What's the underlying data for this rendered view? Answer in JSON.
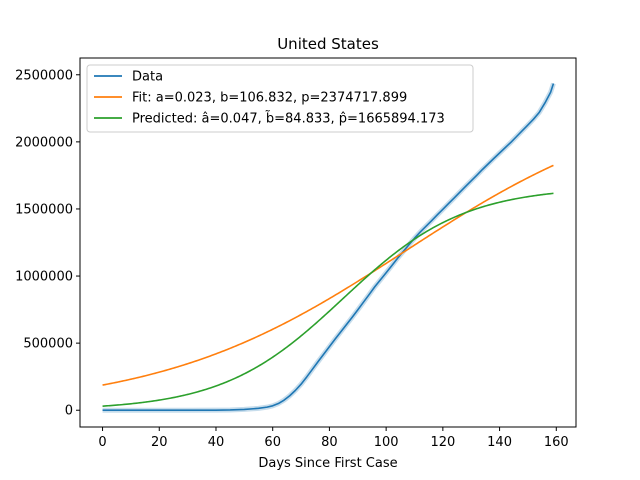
{
  "chart_data": {
    "type": "line",
    "title": "United States",
    "xlabel": "Days Since First Case",
    "ylabel": "",
    "xlim": [
      -7.95,
      166.95
    ],
    "ylim": [
      -125000,
      2625000
    ],
    "xticks": [
      0,
      20,
      40,
      60,
      80,
      100,
      120,
      140,
      160
    ],
    "yticks": [
      0,
      500000,
      1000000,
      1500000,
      2000000,
      2500000
    ],
    "grid": false,
    "legend_position": "top-left",
    "series": [
      {
        "name": "Data",
        "color": "#1f77b4",
        "kind": "observed",
        "x": [
          0,
          10,
          20,
          30,
          40,
          45,
          50,
          55,
          58,
          60,
          62,
          64,
          66,
          68,
          70,
          72,
          74,
          76,
          78,
          80,
          82,
          84,
          86,
          88,
          90,
          92,
          94,
          96,
          98,
          100,
          102,
          104,
          106,
          108,
          110,
          112,
          114,
          116,
          118,
          120,
          122,
          124,
          126,
          128,
          130,
          132,
          134,
          136,
          138,
          140,
          142,
          144,
          146,
          148,
          150,
          152,
          154,
          156,
          158,
          159
        ],
        "y": [
          0,
          0,
          0,
          0,
          500,
          2000,
          6000,
          14000,
          23000,
          33000,
          50000,
          75000,
          108000,
          148000,
          194000,
          248000,
          305000,
          362000,
          418000,
          474000,
          530000,
          584000,
          638000,
          692000,
          748000,
          805000,
          862000,
          920000,
          972000,
          1025000,
          1078000,
          1132000,
          1182000,
          1232000,
          1282000,
          1328000,
          1370000,
          1412000,
          1455000,
          1497000,
          1540000,
          1582000,
          1625000,
          1668000,
          1710000,
          1752000,
          1795000,
          1836000,
          1877000,
          1917000,
          1957000,
          1997000,
          2040000,
          2083000,
          2126000,
          2170000,
          2220000,
          2290000,
          2370000,
          2435000
        ]
      },
      {
        "name": "Fit: a=0.023, b=106.832, p=2374717.899",
        "color": "#ff7f0e",
        "kind": "logistic",
        "a": 0.023,
        "b": 106.832,
        "p": 2374717.899,
        "x_range": [
          0,
          159
        ]
      },
      {
        "name": "Predicted: â=0.047, b̃=84.833, p̂=1665894.173",
        "color": "#2ca02c",
        "kind": "logistic",
        "a": 0.047,
        "b": 84.833,
        "p": 1665894.173,
        "x_range": [
          0,
          159
        ]
      }
    ]
  }
}
